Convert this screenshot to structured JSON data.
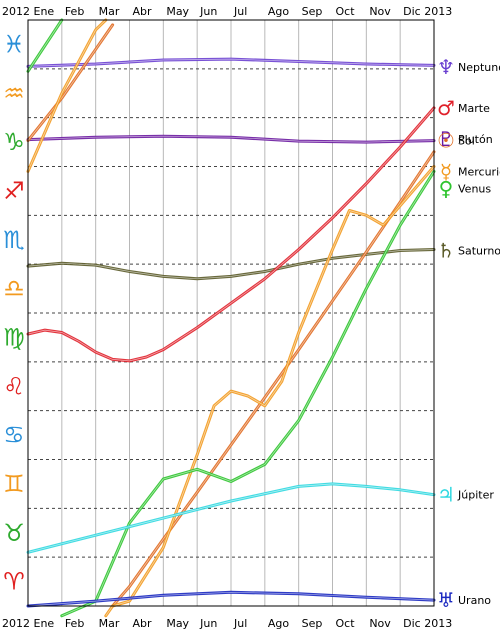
{
  "chart_data": {
    "type": "line",
    "x_unit": "month",
    "xlim": [
      0,
      12
    ],
    "ylim": [
      0,
      12
    ],
    "top_axis": {
      "labels": [
        {
          "text": "2012 Ene",
          "x": 0
        },
        {
          "text": "Feb",
          "x": 1
        },
        {
          "text": "Mar",
          "x": 2
        },
        {
          "text": "Abr",
          "x": 3
        },
        {
          "text": "May",
          "x": 4
        },
        {
          "text": "Jun",
          "x": 5
        },
        {
          "text": "Jul",
          "x": 6
        },
        {
          "text": "Ago",
          "x": 7
        },
        {
          "text": "Sep",
          "x": 8
        },
        {
          "text": "Oct",
          "x": 9
        },
        {
          "text": "Nov",
          "x": 10
        },
        {
          "text": "Dic 2013",
          "x": 11
        }
      ]
    },
    "bottom_axis": {
      "labels": [
        {
          "text": "2012 Ene",
          "x": 0
        },
        {
          "text": "Feb",
          "x": 1
        },
        {
          "text": "Mar",
          "x": 2
        },
        {
          "text": "Abr",
          "x": 3
        },
        {
          "text": "May",
          "x": 4
        },
        {
          "text": "Jun",
          "x": 5
        },
        {
          "text": "Jul",
          "x": 6
        },
        {
          "text": "Ago",
          "x": 7
        },
        {
          "text": "Sep",
          "x": 8
        },
        {
          "text": "Oct",
          "x": 9
        },
        {
          "text": "Nov",
          "x": 10
        },
        {
          "text": "Dic 2013",
          "x": 11
        }
      ]
    },
    "signs": [
      {
        "glyph": "♓",
        "color": "#2a8fd8"
      },
      {
        "glyph": "♒",
        "color": "#f29a1f"
      },
      {
        "glyph": "♑",
        "color": "#2eaa2e"
      },
      {
        "glyph": "♐",
        "color": "#e02020"
      },
      {
        "glyph": "♏",
        "color": "#2a8fd8"
      },
      {
        "glyph": "♎",
        "color": "#f29a1f"
      },
      {
        "glyph": "♍",
        "color": "#2eaa2e"
      },
      {
        "glyph": "♌",
        "color": "#e02020"
      },
      {
        "glyph": "♋",
        "color": "#2a8fd8"
      },
      {
        "glyph": "♊",
        "color": "#f29a1f"
      },
      {
        "glyph": "♉",
        "color": "#2eaa2e"
      },
      {
        "glyph": "♈",
        "color": "#e02020"
      }
    ],
    "grid": true,
    "series": [
      {
        "name": "Neptuno",
        "glyph": "♆",
        "color": "#6a3fd0",
        "label_y": 11.04,
        "points": [
          [
            0,
            11.05
          ],
          [
            2,
            11.1
          ],
          [
            4,
            11.18
          ],
          [
            6,
            11.2
          ],
          [
            8,
            11.15
          ],
          [
            10,
            11.1
          ],
          [
            12,
            11.07
          ]
        ]
      },
      {
        "name": "Plutón",
        "glyph": "♇",
        "color": "#6a1aa0",
        "label_y": 9.56,
        "points": [
          [
            0,
            9.55
          ],
          [
            2,
            9.6
          ],
          [
            4,
            9.62
          ],
          [
            6,
            9.6
          ],
          [
            8,
            9.52
          ],
          [
            10,
            9.5
          ],
          [
            12,
            9.53
          ]
        ]
      },
      {
        "name": "Saturno",
        "glyph": "♄",
        "color": "#5a5a28",
        "label_y": 7.28,
        "points": [
          [
            0,
            6.96
          ],
          [
            1,
            7.02
          ],
          [
            2,
            6.98
          ],
          [
            3,
            6.85
          ],
          [
            4,
            6.75
          ],
          [
            5,
            6.7
          ],
          [
            6,
            6.75
          ],
          [
            7,
            6.85
          ],
          [
            8,
            7.0
          ],
          [
            9,
            7.12
          ],
          [
            10,
            7.2
          ],
          [
            11,
            7.28
          ],
          [
            12,
            7.3
          ]
        ]
      },
      {
        "name": "Marte",
        "glyph": "♂",
        "color": "#e0202a",
        "label_y": 10.2,
        "points": [
          [
            0,
            5.57
          ],
          [
            0.5,
            5.65
          ],
          [
            1,
            5.6
          ],
          [
            1.5,
            5.42
          ],
          [
            2,
            5.2
          ],
          [
            2.5,
            5.05
          ],
          [
            3,
            5.02
          ],
          [
            3.5,
            5.1
          ],
          [
            4,
            5.25
          ],
          [
            5,
            5.7
          ],
          [
            6,
            6.2
          ],
          [
            7,
            6.7
          ],
          [
            8,
            7.3
          ],
          [
            9,
            7.95
          ],
          [
            10,
            8.65
          ],
          [
            11,
            9.4
          ],
          [
            12,
            10.2
          ]
        ]
      },
      {
        "name": "Sol",
        "glyph": "☉",
        "color": "#e06a20",
        "label_y": 9.53,
        "points": [
          [
            0,
            9.53
          ],
          [
            1,
            10.4
          ],
          [
            2,
            11.4
          ],
          [
            2.5,
            11.9
          ],
          [
            2.5,
            0.0
          ],
          [
            3,
            0.4
          ],
          [
            4,
            1.37
          ],
          [
            5,
            2.33
          ],
          [
            6,
            3.3
          ],
          [
            7,
            4.27
          ],
          [
            8,
            5.25
          ],
          [
            9,
            6.25
          ],
          [
            10,
            7.25
          ],
          [
            11,
            8.27
          ],
          [
            12,
            9.3
          ]
        ]
      },
      {
        "name": "Mercurio",
        "glyph": "☿",
        "color": "#f29a1f",
        "label_y": 8.9,
        "points": [
          [
            0,
            8.9
          ],
          [
            1,
            10.5
          ],
          [
            2,
            11.8
          ],
          [
            2.3,
            12.0
          ],
          [
            2.3,
            -0.2
          ],
          [
            2.5,
            0.0
          ],
          [
            3,
            0.1
          ],
          [
            4,
            1.2
          ],
          [
            5,
            3.1
          ],
          [
            5.5,
            4.1
          ],
          [
            6,
            4.4
          ],
          [
            6.5,
            4.3
          ],
          [
            7,
            4.1
          ],
          [
            7.5,
            4.6
          ],
          [
            8,
            5.6
          ],
          [
            9,
            7.3
          ],
          [
            9.5,
            8.1
          ],
          [
            10,
            8.0
          ],
          [
            10.5,
            7.8
          ],
          [
            11,
            8.2
          ],
          [
            12,
            9.0
          ]
        ]
      },
      {
        "name": "Venus",
        "glyph": "♀",
        "color": "#2ec42e",
        "label_y": 8.55,
        "points": [
          [
            0,
            10.95
          ],
          [
            1,
            12.0
          ],
          [
            1,
            -0.2
          ],
          [
            2,
            0.1
          ],
          [
            3,
            1.7
          ],
          [
            4,
            2.6
          ],
          [
            5,
            2.8
          ],
          [
            6,
            2.55
          ],
          [
            7,
            2.9
          ],
          [
            8,
            3.8
          ],
          [
            9,
            5.1
          ],
          [
            10,
            6.5
          ],
          [
            11,
            7.8
          ],
          [
            12,
            8.9
          ]
        ]
      },
      {
        "name": "Júpiter",
        "glyph": "♃",
        "color": "#30d8e0",
        "label_y": 2.28,
        "points": [
          [
            0,
            1.1
          ],
          [
            2,
            1.45
          ],
          [
            4,
            1.8
          ],
          [
            6,
            2.15
          ],
          [
            8,
            2.45
          ],
          [
            9,
            2.5
          ],
          [
            10,
            2.45
          ],
          [
            11,
            2.38
          ],
          [
            12,
            2.28
          ]
        ]
      },
      {
        "name": "Urano",
        "glyph": "♅",
        "color": "#1a28c0",
        "label_y": 0.12,
        "points": [
          [
            0,
            0.0
          ],
          [
            2,
            0.1
          ],
          [
            4,
            0.22
          ],
          [
            6,
            0.28
          ],
          [
            8,
            0.25
          ],
          [
            10,
            0.18
          ],
          [
            12,
            0.12
          ]
        ]
      }
    ]
  }
}
